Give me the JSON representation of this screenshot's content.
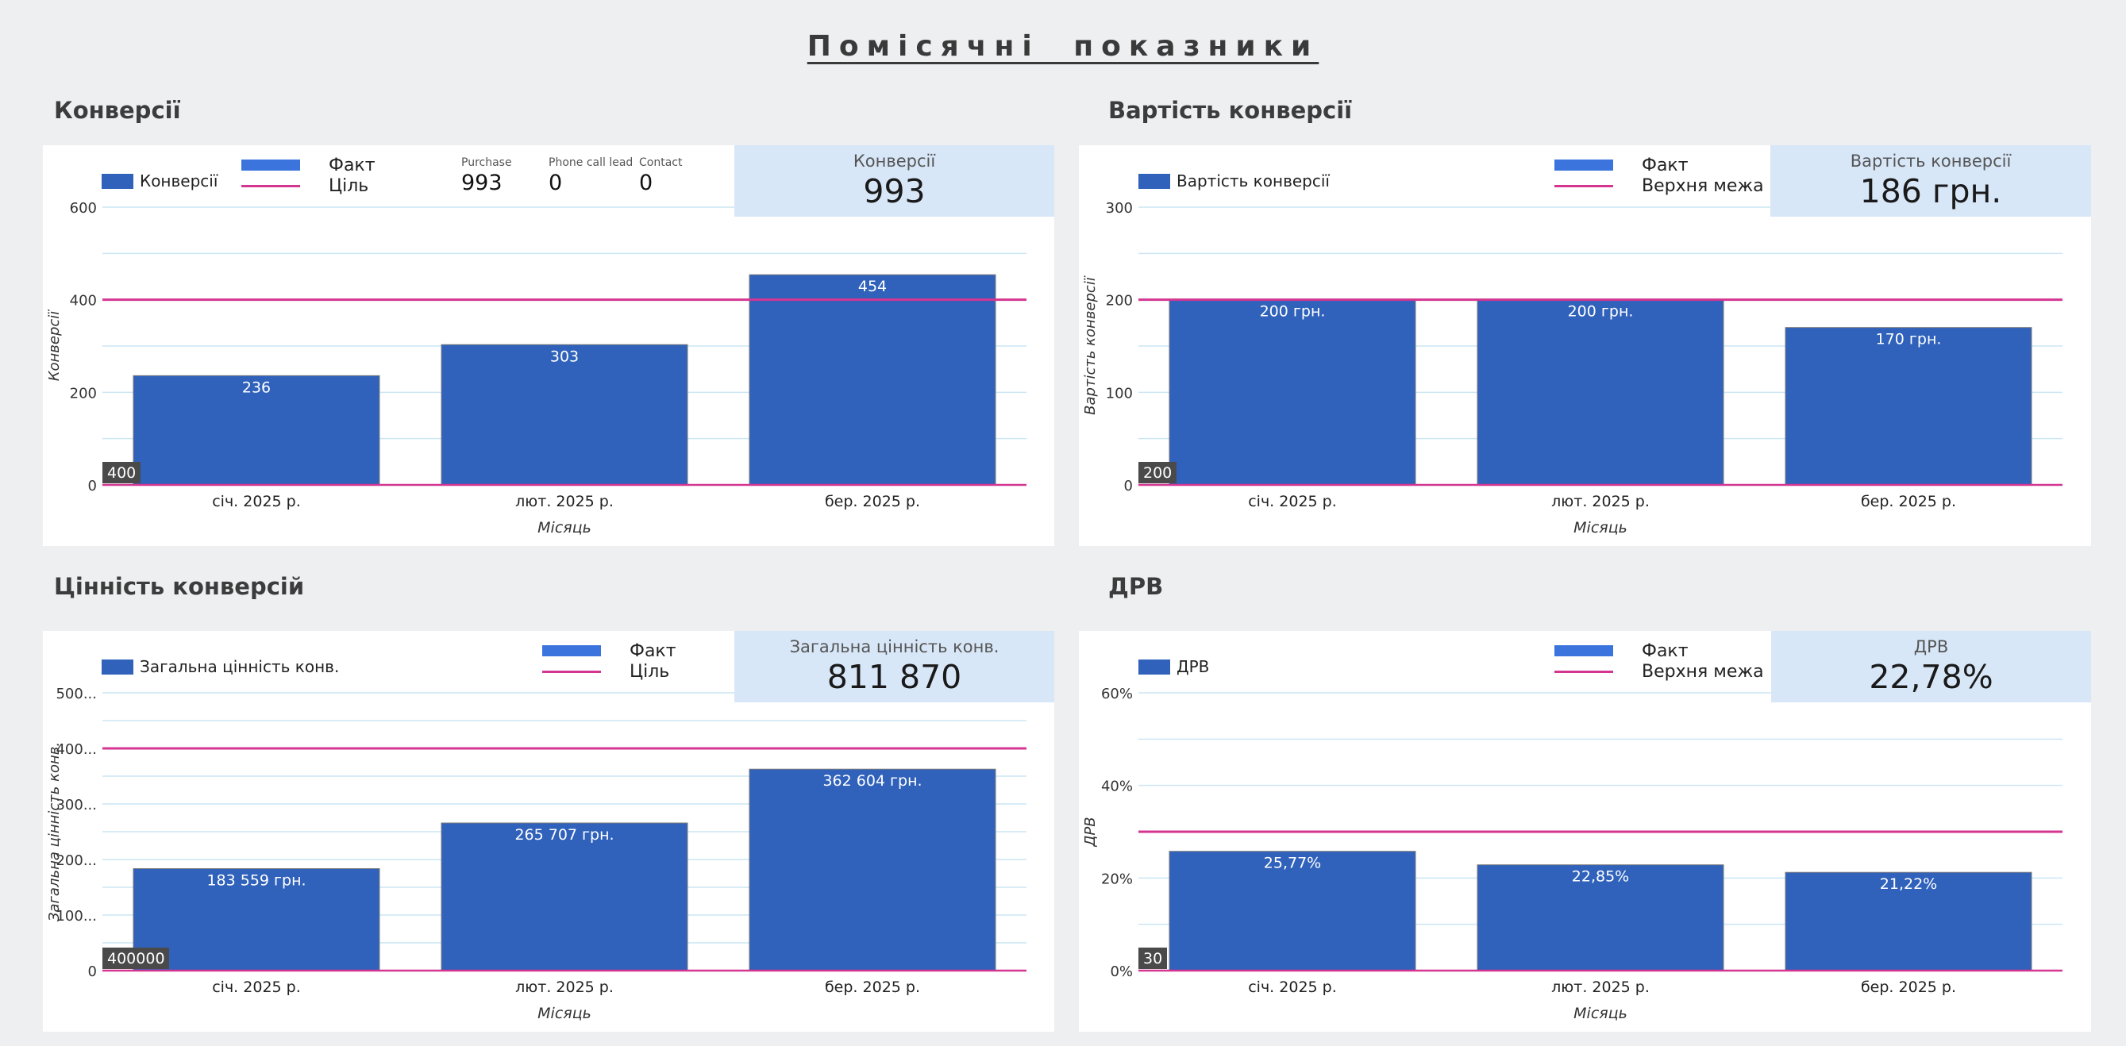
{
  "page_title": "Помісячні показники",
  "colors": {
    "bar": "#3062bb",
    "target_line": "#d43591",
    "grid": "#cce6f4",
    "scorecard_bg": "#d8e7f8"
  },
  "legend_common": {
    "fact": "Факт",
    "goal": "Ціль",
    "upper_limit": "Верхня межа"
  },
  "panels": {
    "conversions": {
      "section_title": "Конверсії",
      "series_legend": "Конверсії",
      "scorecard": {
        "label": "Конверсії",
        "value": "993"
      },
      "breakdown": [
        {
          "label": "Purchase",
          "value": "993"
        },
        {
          "label": "Phone call lead",
          "value": "0"
        },
        {
          "label": "Contact",
          "value": "0"
        }
      ]
    },
    "cost": {
      "section_title": "Вартість конверсії",
      "series_legend": "Вартість конверсії",
      "scorecard": {
        "label": "Вартість конверсії",
        "value": "186 грн."
      }
    },
    "value": {
      "section_title": "Цінність конверсій",
      "series_legend": "Загальна цінність конв.",
      "scorecard": {
        "label": "Загальна цінність конв.",
        "value": "811 870"
      }
    },
    "cvr": {
      "section_title": "ДРВ",
      "series_legend": "ДРВ",
      "scorecard": {
        "label": "ДРВ",
        "value": "22,78%"
      }
    }
  },
  "chart_data": [
    {
      "type": "bar",
      "title": "Конверсії",
      "categories": [
        "січ. 2025 р.",
        "лют. 2025 р.",
        "бер. 2025 р."
      ],
      "values": [
        236,
        303,
        454
      ],
      "value_labels": [
        "236",
        "303",
        "454"
      ],
      "series": [
        {
          "name": "Конверсії",
          "values": [
            236,
            303,
            454
          ]
        }
      ],
      "reference_line": {
        "name": "Ціль",
        "value": 400
      },
      "reference_badge": "400",
      "xlabel": "Місяць",
      "ylabel": "Конверсії",
      "ylim": [
        0,
        600
      ],
      "yticks": [
        0,
        200,
        400,
        600
      ],
      "ytick_labels": [
        "0",
        "200",
        "400",
        "600"
      ],
      "grid": true
    },
    {
      "type": "bar",
      "title": "Вартість конверсії",
      "categories": [
        "січ. 2025 р.",
        "лют. 2025 р.",
        "бер. 2025 р."
      ],
      "values": [
        200,
        200,
        170
      ],
      "value_labels": [
        "200 грн.",
        "200 грн.",
        "170 грн."
      ],
      "series": [
        {
          "name": "Вартість конверсії",
          "values": [
            200,
            200,
            170
          ]
        }
      ],
      "reference_line": {
        "name": "Верхня межа",
        "value": 200
      },
      "reference_badge": "200",
      "xlabel": "Місяць",
      "ylabel": "Вартість конверсії",
      "ylim": [
        0,
        300
      ],
      "yticks": [
        0,
        100,
        200,
        300
      ],
      "ytick_labels": [
        "0",
        "100",
        "200",
        "300"
      ],
      "grid": true
    },
    {
      "type": "bar",
      "title": "Цінність конверсій",
      "categories": [
        "січ. 2025 р.",
        "лют. 2025 р.",
        "бер. 2025 р."
      ],
      "values": [
        183559,
        265707,
        362604
      ],
      "value_labels": [
        "183 559 грн.",
        "265 707 грн.",
        "362 604 грн."
      ],
      "series": [
        {
          "name": "Загальна цінність конв.",
          "values": [
            183559,
            265707,
            362604
          ]
        }
      ],
      "reference_line": {
        "name": "Ціль",
        "value": 400000
      },
      "reference_badge": "400000",
      "xlabel": "Місяць",
      "ylabel": "Загальна цінність конв.",
      "ylim": [
        0,
        500000
      ],
      "yticks": [
        0,
        100000,
        200000,
        300000,
        400000,
        500000
      ],
      "ytick_labels": [
        "0",
        "100...",
        "200...",
        "300...",
        "400...",
        "500..."
      ],
      "grid": true
    },
    {
      "type": "bar",
      "title": "ДРВ",
      "categories": [
        "січ. 2025 р.",
        "лют. 2025 р.",
        "бер. 2025 р."
      ],
      "values": [
        25.77,
        22.85,
        21.22
      ],
      "value_labels": [
        "25,77%",
        "22,85%",
        "21,22%"
      ],
      "series": [
        {
          "name": "ДРВ",
          "values": [
            25.77,
            22.85,
            21.22
          ]
        }
      ],
      "reference_line": {
        "name": "Верхня межа",
        "value": 30
      },
      "reference_badge": "30",
      "xlabel": "Місяць",
      "ylabel": "ДРВ",
      "ylim": [
        0,
        60
      ],
      "yticks": [
        0,
        20,
        40,
        60
      ],
      "ytick_labels": [
        "0%",
        "20%",
        "40%",
        "60%"
      ],
      "grid": true
    }
  ]
}
